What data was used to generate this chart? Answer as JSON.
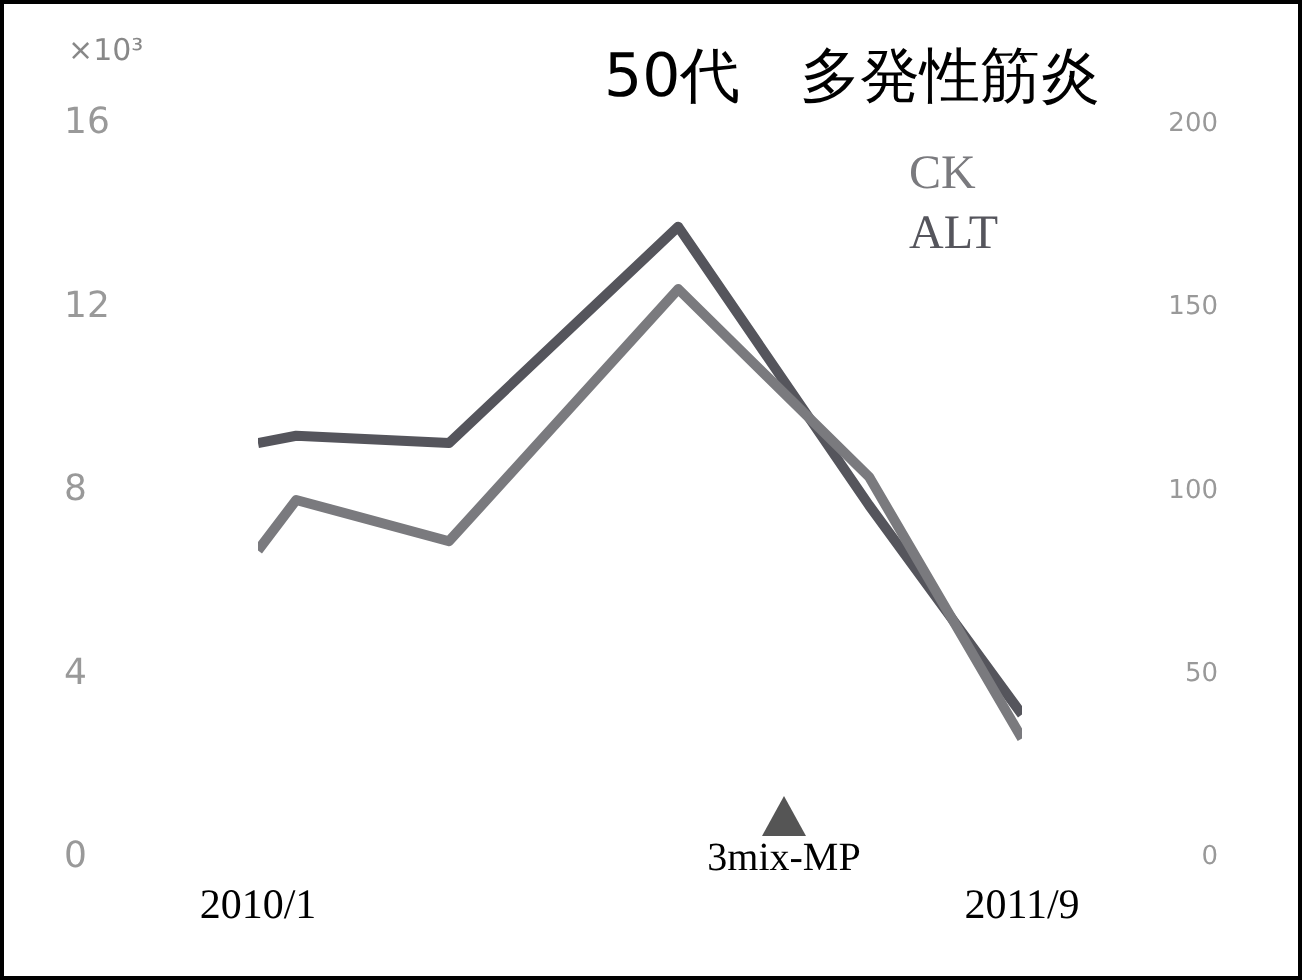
{
  "chart_data": {
    "type": "line",
    "title": "50代　多発性筋炎",
    "ylabel": "×10³",
    "x": [
      "2010-01",
      "2010-02",
      "2010-06",
      "2010-12",
      "2011-05",
      "2011-09"
    ],
    "xlim": [
      "2010-01",
      "2011-09"
    ],
    "xticks": [
      {
        "value": "2010-01",
        "label": "2010/1"
      },
      {
        "value": "2011-09",
        "label": "2011/9"
      }
    ],
    "ylim": [
      0,
      16
    ],
    "yticks": [
      0,
      4,
      8,
      12,
      16
    ],
    "y2lim": [
      0,
      200
    ],
    "y2ticks": [
      0,
      50,
      100,
      150,
      200
    ],
    "series": [
      {
        "name": "CK",
        "color": "#7a7a7e",
        "values": [
          6.7,
          7.8,
          6.9,
          12.4,
          8.3,
          2.6
        ]
      },
      {
        "name": "ALT",
        "color": "#55555c",
        "axis": "y2",
        "values": [
          113,
          115,
          113,
          172,
          96,
          39
        ]
      }
    ],
    "annotations": [
      "3mix-MP"
    ],
    "grid": false,
    "legend": "top right"
  }
}
